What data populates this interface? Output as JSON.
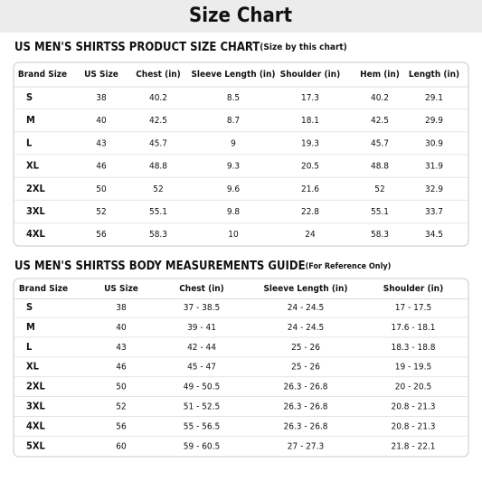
{
  "header": {
    "title": "Size Chart"
  },
  "product_chart": {
    "heading": "US MEN'S SHIRTSS PRODUCT SIZE CHART",
    "note": "(Size by this chart)",
    "columns": [
      "Brand Size",
      "US Size",
      "Chest (in)",
      "Sleeve Length (in)",
      "Shoulder (in)",
      "Hem (in)",
      "Length (in)"
    ],
    "rows": [
      [
        "S",
        "38",
        "40.2",
        "8.5",
        "17.3",
        "40.2",
        "29.1"
      ],
      [
        "M",
        "40",
        "42.5",
        "8.7",
        "18.1",
        "42.5",
        "29.9"
      ],
      [
        "L",
        "43",
        "45.7",
        "9",
        "19.3",
        "45.7",
        "30.9"
      ],
      [
        "XL",
        "46",
        "48.8",
        "9.3",
        "20.5",
        "48.8",
        "31.9"
      ],
      [
        "2XL",
        "50",
        "52",
        "9.6",
        "21.6",
        "52",
        "32.9"
      ],
      [
        "3XL",
        "52",
        "55.1",
        "9.8",
        "22.8",
        "55.1",
        "33.7"
      ],
      [
        "4XL",
        "56",
        "58.3",
        "10",
        "24",
        "58.3",
        "34.5"
      ]
    ]
  },
  "body_chart": {
    "heading": "US MEN'S SHIRTSS BODY MEASUREMENTS GUIDE",
    "note": "(For  Reference Only)",
    "columns": [
      "Brand Size",
      "US Size",
      "Chest (in)",
      "Sleeve Length (in)",
      "Shoulder (in)"
    ],
    "rows": [
      [
        "S",
        "38",
        "37 - 38.5",
        "24 - 24.5",
        "17 - 17.5"
      ],
      [
        "M",
        "40",
        "39 - 41",
        "24 - 24.5",
        "17.6 - 18.1"
      ],
      [
        "L",
        "43",
        "42 - 44",
        "25 - 26",
        "18.3 - 18.8"
      ],
      [
        "XL",
        "46",
        "45 - 47",
        "25 - 26",
        "19 - 19.5"
      ],
      [
        "2XL",
        "50",
        "49 - 50.5",
        "26.3 - 26.8",
        "20 - 20.5"
      ],
      [
        "3XL",
        "52",
        "51 - 52.5",
        "26.3 - 26.8",
        "20.8 - 21.3"
      ],
      [
        "4XL",
        "56",
        "55 - 56.5",
        "26.3 - 26.8",
        "20.8 - 21.3"
      ],
      [
        "5XL",
        "60",
        "59 - 60.5",
        "27 - 27.3",
        "21.8 - 22.1"
      ]
    ]
  }
}
